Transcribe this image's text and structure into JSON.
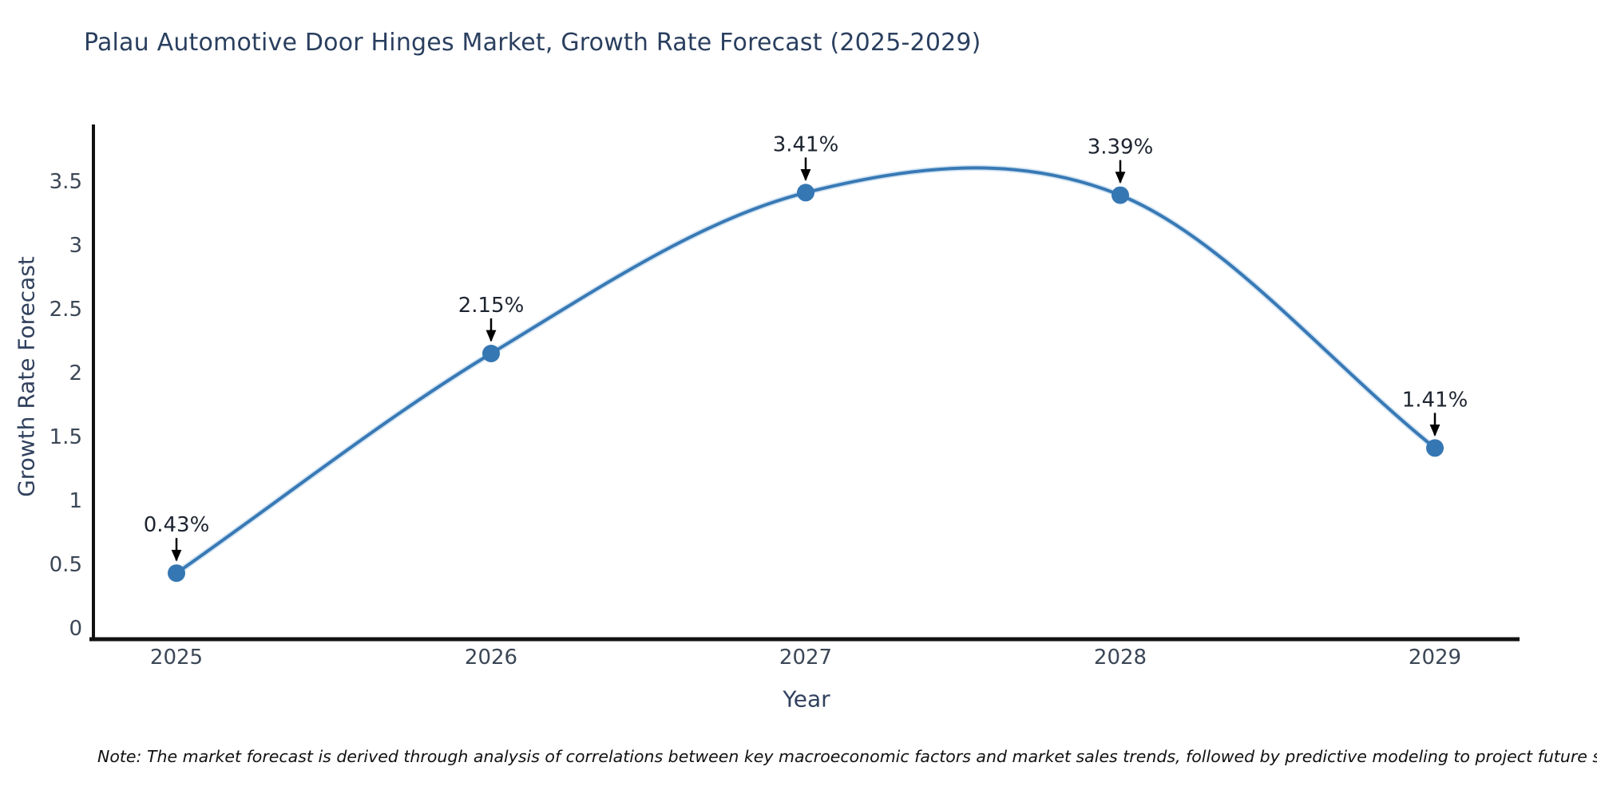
{
  "title": "Palau Automotive Door Hinges Market, Growth Rate Forecast (2025-2029)",
  "note": "Note: The market forecast is derived through analysis of correlations between key macroeconomic factors and market sales trends, followed by predictive modeling to project future sales",
  "chart_data": {
    "type": "line",
    "title": "Palau Automotive Door Hinges Market, Growth Rate Forecast (2025-2029)",
    "xlabel": "Year",
    "ylabel": "Growth Rate Forecast",
    "categories": [
      "2025",
      "2026",
      "2027",
      "2028",
      "2029"
    ],
    "series": [
      {
        "name": "Growth Rate Forecast",
        "values": [
          0.43,
          2.15,
          3.41,
          3.39,
          1.41
        ]
      }
    ],
    "point_labels": [
      "0.43%",
      "2.15%",
      "3.41%",
      "3.39%",
      "1.41%"
    ],
    "yticks": [
      0,
      0.5,
      1,
      1.5,
      2,
      2.5,
      3,
      3.5
    ],
    "ylim": [
      -0.1,
      3.95
    ],
    "grid": false,
    "legend_position": "none",
    "smooth_curve": true,
    "colors": {
      "line": "#3879b5",
      "line_halo": "#9cc4e4",
      "marker": "#3577b3",
      "axis": "#111111",
      "tick_label": "#3b4756",
      "annotation_text": "#1d2430",
      "arrow": "#000000"
    }
  }
}
